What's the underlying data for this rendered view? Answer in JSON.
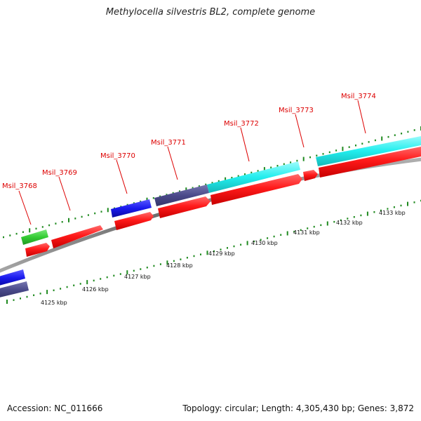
{
  "title": "Methylocella silvestris BL2, complete genome",
  "footer": {
    "accession": "Accession: NC_011666",
    "info": "Topology: circular; Length: 4,305,430 bp; Genes: 3,872"
  },
  "gene_labels": [
    "Msil_3768",
    "Msil_3769",
    "Msil_3770",
    "Msil_3771",
    "Msil_3772",
    "Msil_3773",
    "Msil_3774"
  ],
  "kbp_labels": [
    "4125 kbp",
    "4126 kbp",
    "4127 kbp",
    "4128 kbp",
    "4129 kbp",
    "4130 kbp",
    "4131 kbp",
    "4132 kbp",
    "4133 kbp"
  ],
  "colors": {
    "backbone": "#888888",
    "cds": "#ff1a1a",
    "gene_label": "#dd0000",
    "tick": "#1f8a1f",
    "green_feature": "#33cc33",
    "blue_feature": "#1a1aee",
    "slate_feature": "#4a4a8a",
    "cyan_feature": "#22eeee"
  }
}
